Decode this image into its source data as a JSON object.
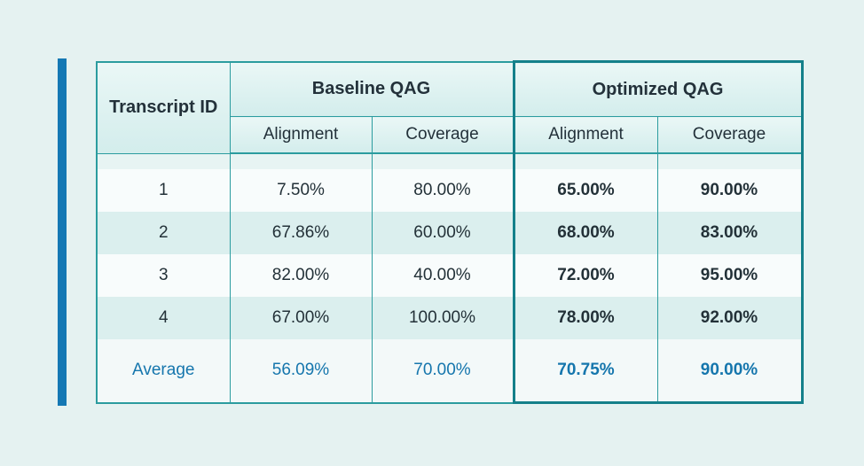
{
  "page": {
    "background_color": "#e5f2f1",
    "accent_bar_color": "#1478b4",
    "table_border_color": "#2b9c9f",
    "optimized_frame_color": "#14808a",
    "average_text_color": "#1576ad"
  },
  "table": {
    "header": {
      "transcript_id": "Transcript ID",
      "baseline_group": "Baseline QAG",
      "optimized_group": "Optimized QAG",
      "baseline_alignment": "Alignment",
      "baseline_coverage": "Coverage",
      "optimized_alignment": "Alignment",
      "optimized_coverage": "Coverage"
    },
    "rows": [
      {
        "id": "1",
        "baseline_alignment": "7.50%",
        "baseline_coverage": "80.00%",
        "optimized_alignment": "65.00%",
        "optimized_coverage": "90.00%"
      },
      {
        "id": "2",
        "baseline_alignment": "67.86%",
        "baseline_coverage": "60.00%",
        "optimized_alignment": "68.00%",
        "optimized_coverage": "83.00%"
      },
      {
        "id": "3",
        "baseline_alignment": "82.00%",
        "baseline_coverage": "40.00%",
        "optimized_alignment": "72.00%",
        "optimized_coverage": "95.00%"
      },
      {
        "id": "4",
        "baseline_alignment": "67.00%",
        "baseline_coverage": "100.00%",
        "optimized_alignment": "78.00%",
        "optimized_coverage": "92.00%"
      }
    ],
    "average": {
      "label": "Average",
      "baseline_alignment": "56.09%",
      "baseline_coverage": "70.00%",
      "optimized_alignment": "70.75%",
      "optimized_coverage": "90.00%"
    }
  },
  "chart_data": {
    "type": "table",
    "title": "",
    "columns": [
      "Transcript ID",
      "Baseline QAG Alignment",
      "Baseline QAG Coverage",
      "Optimized QAG Alignment",
      "Optimized QAG Coverage"
    ],
    "rows": [
      [
        "1",
        "7.50%",
        "80.00%",
        "65.00%",
        "90.00%"
      ],
      [
        "2",
        "67.86%",
        "60.00%",
        "68.00%",
        "83.00%"
      ],
      [
        "3",
        "82.00%",
        "40.00%",
        "72.00%",
        "95.00%"
      ],
      [
        "4",
        "67.00%",
        "100.00%",
        "78.00%",
        "92.00%"
      ],
      [
        "Average",
        "56.09%",
        "70.00%",
        "70.75%",
        "90.00%"
      ]
    ],
    "column_groups": [
      {
        "label": "Baseline QAG",
        "columns": [
          "Alignment",
          "Coverage"
        ]
      },
      {
        "label": "Optimized QAG",
        "columns": [
          "Alignment",
          "Coverage"
        ],
        "highlighted": true
      }
    ]
  }
}
